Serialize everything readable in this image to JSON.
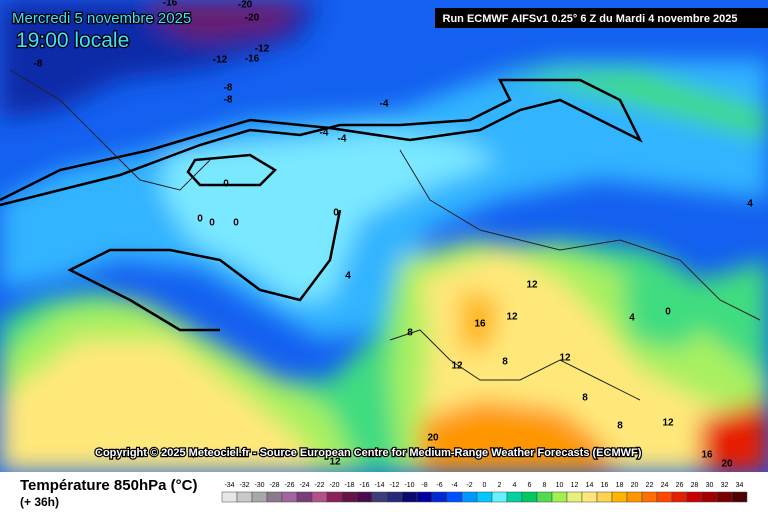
{
  "header": {
    "date": "Mercredi 5 novembre 2025",
    "time": "19:00 locale",
    "run": "Run ECMWF AIFSv1 0.25° 6 Z du Mardi 4 novembre 2025"
  },
  "map": {
    "contour_labels": [
      -16,
      -20,
      -20,
      -12,
      -12,
      -16,
      -8,
      -8,
      -8,
      -4,
      -4,
      -4,
      0,
      0,
      0,
      0,
      0,
      4,
      4,
      8,
      12,
      16,
      12,
      12,
      12,
      8,
      4,
      0,
      8,
      8,
      12,
      20,
      12,
      16,
      20
    ]
  },
  "copyright": "Copyright © 2025 Meteociel.fr - Source European Centre for Medium-Range Weather Forecasts (ECMWF)",
  "legend": {
    "title": "Température 850hPa (°C)",
    "lead": "(+ 36h)",
    "values": [
      -34,
      -32,
      -30,
      -28,
      -26,
      -24,
      -22,
      -20,
      -18,
      -16,
      -14,
      -12,
      -10,
      -8,
      -6,
      -4,
      -2,
      0,
      2,
      4,
      6,
      8,
      10,
      12,
      14,
      16,
      18,
      20,
      22,
      24,
      26,
      28,
      30,
      32,
      34
    ],
    "colors": [
      "#e6e6e6",
      "#c8c8c8",
      "#a8a8a8",
      "#8c788c",
      "#a064a0",
      "#7a3c7a",
      "#b4508c",
      "#8c1e5a",
      "#641446",
      "#4b0a50",
      "#3c3c78",
      "#28287a",
      "#0a0a6e",
      "#0000a0",
      "#0028d2",
      "#0050ff",
      "#0096ff",
      "#00c8ff",
      "#64f0ff",
      "#00d2a0",
      "#00c864",
      "#50dc50",
      "#a0f050",
      "#e6f07a",
      "#ffe87a",
      "#ffd250",
      "#ffb400",
      "#ff9600",
      "#ff6e00",
      "#ff4600",
      "#e61e00",
      "#c80000",
      "#a00000",
      "#780000",
      "#500000"
    ]
  }
}
